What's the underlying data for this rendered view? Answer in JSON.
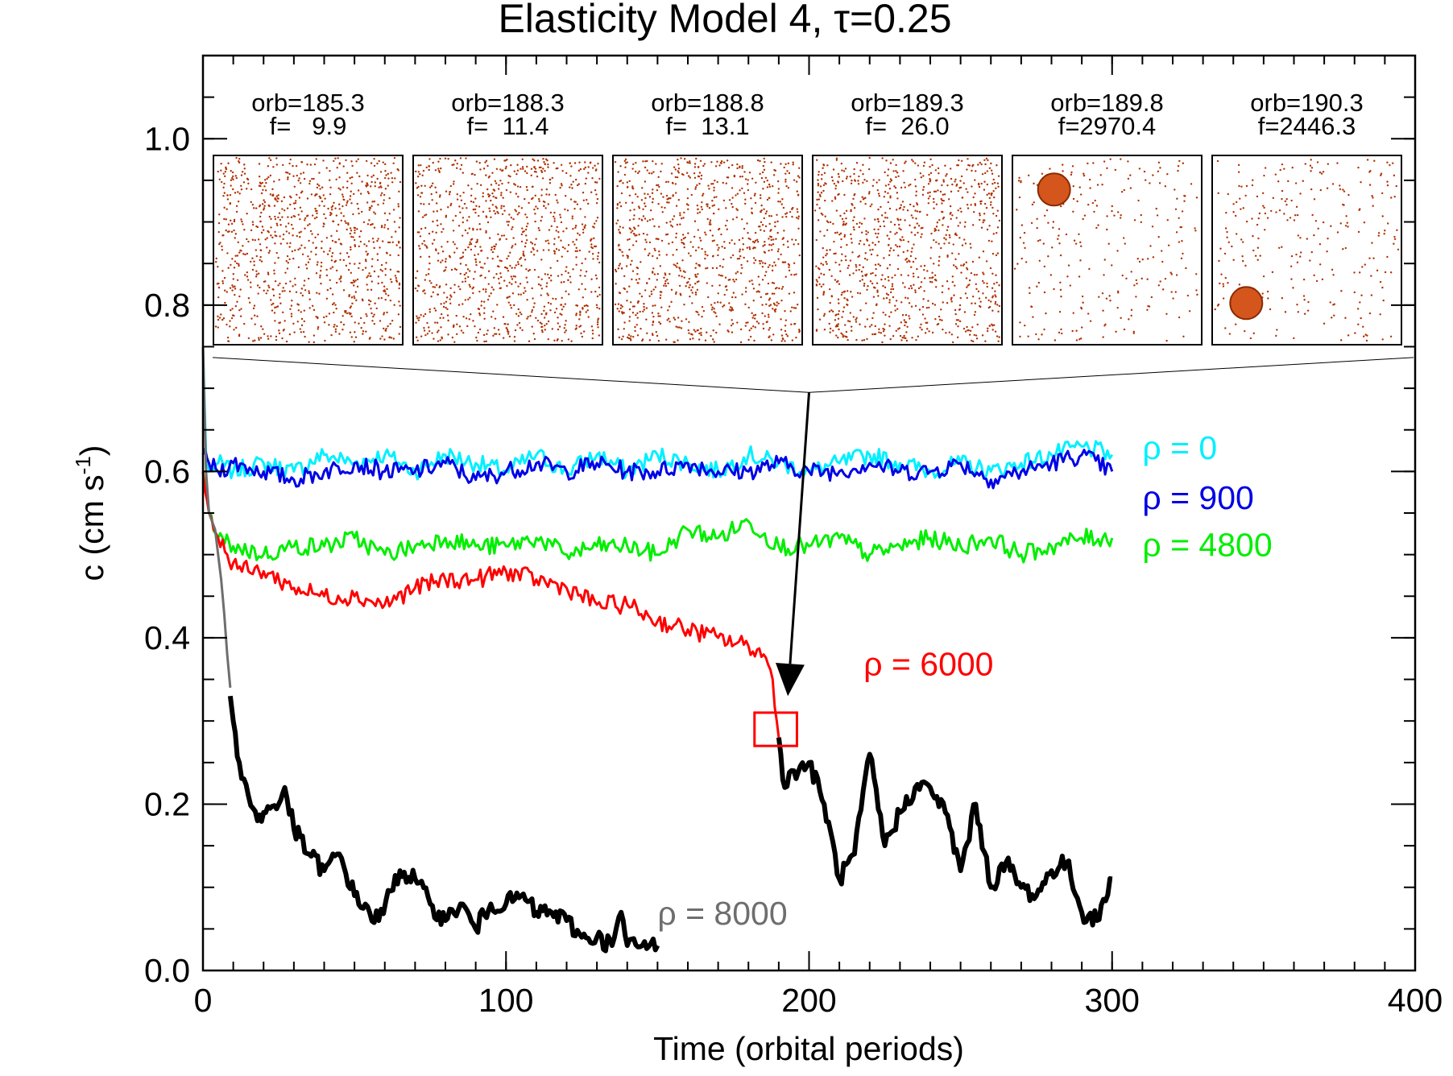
{
  "chart_data": {
    "type": "line",
    "title": "Elasticity Model 4,  τ=0.25",
    "xlabel": "Time (orbital periods)",
    "ylabel_main": "c (cm s",
    "ylabel_sup": "-1",
    "ylabel_end": ")",
    "xlim": [
      0,
      400
    ],
    "ylim": [
      0.0,
      1.1
    ],
    "xticks": [
      {
        "value": 0,
        "label": "0"
      },
      {
        "value": 100,
        "label": "100"
      },
      {
        "value": 200,
        "label": "200"
      },
      {
        "value": 300,
        "label": "300"
      },
      {
        "value": 400,
        "label": "400"
      }
    ],
    "yticks": [
      {
        "value": 0.0,
        "label": "0.0"
      },
      {
        "value": 0.2,
        "label": "0.2"
      },
      {
        "value": 0.4,
        "label": "0.4"
      },
      {
        "value": 0.6,
        "label": "0.6"
      },
      {
        "value": 0.8,
        "label": "0.8"
      },
      {
        "value": 1.0,
        "label": "1.0"
      }
    ],
    "x_minor_step": 10,
    "y_minor_step": 0.05,
    "grid": false,
    "series": [
      {
        "name": "ρ = 0",
        "color": "#00f0ff",
        "width": 3,
        "label_at": [
          310,
          0.615
        ],
        "x": [
          0,
          1,
          2,
          5,
          10,
          20,
          30,
          40,
          50,
          60,
          70,
          80,
          90,
          100,
          110,
          120,
          130,
          140,
          150,
          160,
          170,
          180,
          190,
          200,
          210,
          220,
          230,
          240,
          250,
          260,
          270,
          280,
          290,
          300
        ],
        "y": [
          0.75,
          0.62,
          0.6,
          0.61,
          0.6,
          0.61,
          0.6,
          0.62,
          0.61,
          0.62,
          0.6,
          0.62,
          0.61,
          0.6,
          0.62,
          0.6,
          0.62,
          0.6,
          0.62,
          0.61,
          0.6,
          0.62,
          0.61,
          0.6,
          0.61,
          0.62,
          0.61,
          0.6,
          0.61,
          0.6,
          0.61,
          0.62,
          0.63,
          0.62
        ]
      },
      {
        "name": "ρ = 900",
        "color": "#0000e6",
        "width": 3,
        "label_at": [
          310,
          0.555
        ],
        "x": [
          0,
          2,
          5,
          10,
          20,
          30,
          40,
          50,
          60,
          70,
          80,
          90,
          100,
          110,
          120,
          130,
          140,
          150,
          160,
          170,
          180,
          190,
          200,
          210,
          220,
          230,
          240,
          250,
          260,
          270,
          280,
          290,
          300
        ],
        "y": [
          0.62,
          0.61,
          0.6,
          0.61,
          0.6,
          0.59,
          0.6,
          0.61,
          0.6,
          0.6,
          0.61,
          0.59,
          0.6,
          0.61,
          0.6,
          0.61,
          0.6,
          0.6,
          0.61,
          0.6,
          0.6,
          0.61,
          0.6,
          0.6,
          0.61,
          0.6,
          0.6,
          0.61,
          0.59,
          0.6,
          0.61,
          0.62,
          0.6
        ]
      },
      {
        "name": "ρ = 4800",
        "color": "#00ee00",
        "width": 3,
        "label_at": [
          310,
          0.498
        ],
        "x": [
          0,
          2,
          5,
          10,
          20,
          30,
          40,
          50,
          60,
          70,
          80,
          90,
          100,
          110,
          120,
          130,
          140,
          150,
          160,
          170,
          180,
          190,
          200,
          210,
          220,
          230,
          240,
          250,
          260,
          270,
          280,
          290,
          300
        ],
        "y": [
          0.6,
          0.55,
          0.52,
          0.51,
          0.5,
          0.51,
          0.51,
          0.52,
          0.5,
          0.51,
          0.52,
          0.51,
          0.51,
          0.52,
          0.5,
          0.51,
          0.51,
          0.5,
          0.53,
          0.52,
          0.54,
          0.51,
          0.51,
          0.52,
          0.5,
          0.51,
          0.52,
          0.51,
          0.52,
          0.5,
          0.51,
          0.52,
          0.52
        ]
      },
      {
        "name": "ρ = 6000",
        "color": "#ff0000",
        "width": 3,
        "label_at": [
          218,
          0.355
        ],
        "x": [
          0,
          2,
          5,
          8,
          10,
          15,
          20,
          30,
          40,
          50,
          60,
          70,
          80,
          90,
          100,
          110,
          120,
          130,
          140,
          150,
          160,
          170,
          180,
          185,
          188,
          190
        ],
        "y": [
          0.6,
          0.55,
          0.52,
          0.5,
          0.49,
          0.48,
          0.48,
          0.46,
          0.45,
          0.45,
          0.44,
          0.46,
          0.47,
          0.47,
          0.48,
          0.47,
          0.46,
          0.44,
          0.44,
          0.42,
          0.41,
          0.4,
          0.39,
          0.38,
          0.35,
          0.28
        ]
      },
      {
        "name": "",
        "color": "#000000",
        "width": 6,
        "x": [
          190,
          192,
          195,
          200,
          205,
          210,
          215,
          220,
          225,
          230,
          235,
          240,
          245,
          250,
          255,
          260,
          265,
          270,
          275,
          280,
          285,
          290,
          295,
          300
        ],
        "y": [
          0.28,
          0.22,
          0.24,
          0.25,
          0.2,
          0.11,
          0.14,
          0.26,
          0.15,
          0.19,
          0.22,
          0.22,
          0.19,
          0.12,
          0.2,
          0.1,
          0.13,
          0.1,
          0.09,
          0.12,
          0.13,
          0.07,
          0.06,
          0.11
        ]
      },
      {
        "name": "",
        "color": "#6e6e6e",
        "width": 3,
        "x": [
          0,
          1,
          2,
          3,
          4,
          5,
          6,
          7,
          8,
          9
        ],
        "y": [
          0.75,
          0.6,
          0.55,
          0.54,
          0.53,
          0.5,
          0.47,
          0.43,
          0.38,
          0.34
        ]
      },
      {
        "name": "ρ = 8000",
        "color": "#000000",
        "width": 6,
        "label_color": "#6e6e6e",
        "label_at": [
          150,
          0.055
        ],
        "x": [
          9,
          10,
          12,
          15,
          18,
          20,
          25,
          27,
          30,
          35,
          40,
          45,
          50,
          55,
          58,
          65,
          70,
          75,
          80,
          85,
          90,
          95,
          100,
          105,
          110,
          115,
          120,
          125,
          130,
          135,
          138,
          140,
          145,
          150
        ],
        "y": [
          0.33,
          0.3,
          0.25,
          0.21,
          0.18,
          0.19,
          0.2,
          0.22,
          0.17,
          0.14,
          0.12,
          0.14,
          0.09,
          0.07,
          0.06,
          0.12,
          0.11,
          0.08,
          0.06,
          0.08,
          0.05,
          0.08,
          0.08,
          0.09,
          0.07,
          0.07,
          0.06,
          0.04,
          0.04,
          0.03,
          0.07,
          0.03,
          0.03,
          0.03
        ]
      }
    ],
    "highlight_box": {
      "x": [
        182,
        196
      ],
      "y": [
        0.27,
        0.31
      ],
      "color": "#ff0000"
    },
    "zoom_arrow_tip": [
      193,
      0.33
    ],
    "zoom_lines_apex": [
      200,
      0.695
    ],
    "zoom_lines_y": 0.737,
    "snapshots": [
      {
        "orb": "orb=185.3",
        "f": "f=   9.9",
        "clumps": []
      },
      {
        "orb": "orb=188.3",
        "f": "f=  11.4",
        "clumps": []
      },
      {
        "orb": "orb=188.8",
        "f": "f=  13.1",
        "clumps": []
      },
      {
        "orb": "orb=189.3",
        "f": "f=  26.0",
        "clumps": []
      },
      {
        "orb": "orb=189.8",
        "f": "f=2970.4",
        "clumps": [
          [
            0.22,
            0.18
          ]
        ]
      },
      {
        "orb": "orb=190.3",
        "f": "f=2446.3",
        "clumps": [
          [
            0.18,
            0.78
          ]
        ]
      }
    ],
    "particle_color": "#b03000"
  }
}
